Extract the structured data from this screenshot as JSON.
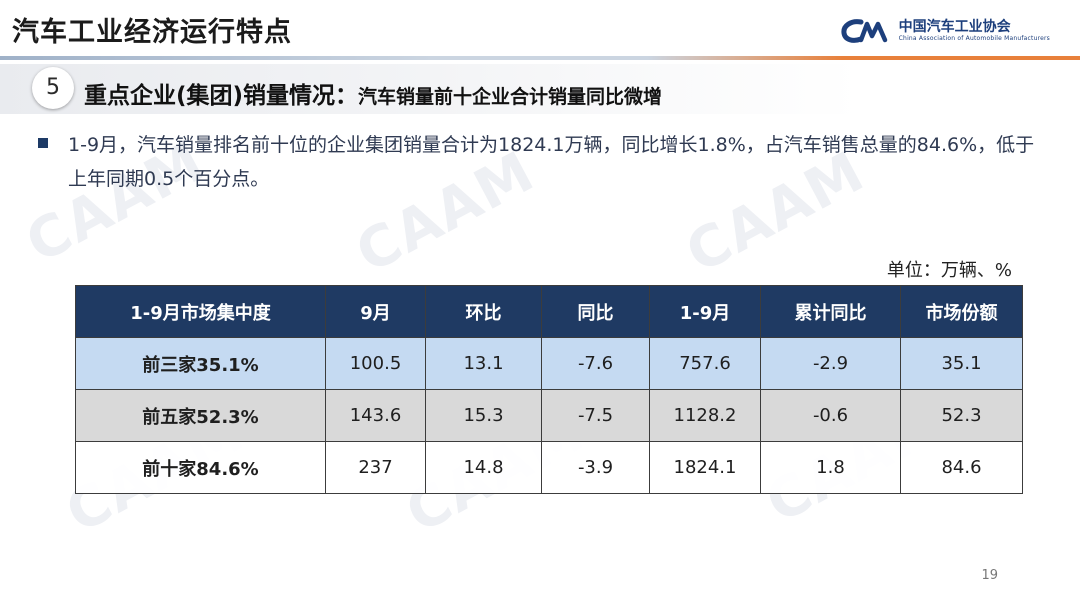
{
  "header": {
    "title": "汽车工业经济运行特点",
    "logo_cn": "中国汽车工业协会",
    "logo_en": "China Association of Automobile Manufacturers"
  },
  "section": {
    "number": "5",
    "title": "重点企业(集团)销量情况：",
    "subtitle": "汽车销量前十企业合计销量同比微增"
  },
  "bullet": {
    "text": "1-9月，汽车销量排名前十位的企业集团销量合计为1824.1万辆，同比增长1.8%，占汽车销售总量的84.6%，低于上年同期0.5个百分点。"
  },
  "unit_label": "单位：万辆、%",
  "table": {
    "headers": [
      "1-9月市场集中度",
      "9月",
      "环比",
      "同比",
      "1-9月",
      "累计同比",
      "市场份额"
    ],
    "rows": [
      [
        "前三家35.1%",
        "100.5",
        "13.1",
        "-7.6",
        "757.6",
        "-2.9",
        "35.1"
      ],
      [
        "前五家52.3%",
        "143.6",
        "15.3",
        "-7.5",
        "1128.2",
        "-0.6",
        "52.3"
      ],
      [
        "前十家84.6%",
        "237",
        "14.8",
        "-3.9",
        "1824.1",
        "1.8",
        "84.6"
      ]
    ]
  },
  "page_number": "19",
  "colors": {
    "header_fill": "#1f3a63",
    "row1_fill": "#c5daf2",
    "row2_fill": "#d9d9d9",
    "accent_orange": "#e8803a",
    "brand_blue": "#1d3f7c"
  }
}
